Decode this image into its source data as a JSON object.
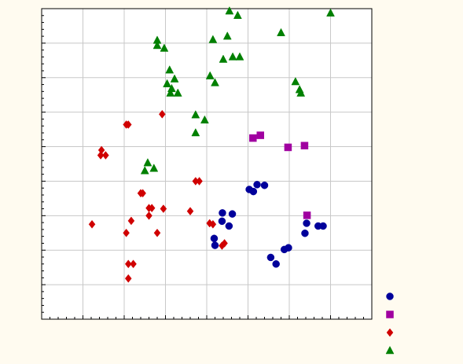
{
  "chart_data": {
    "type": "scatter",
    "title": "",
    "xlabel": "",
    "ylabel": "",
    "xlim": [
      0,
      8
    ],
    "ylim": [
      0,
      9
    ],
    "x_ticks": [
      0,
      1,
      2,
      3,
      4,
      5,
      6,
      7,
      8
    ],
    "y_ticks": [
      0,
      1,
      2,
      3,
      4,
      5,
      6,
      7,
      8,
      9
    ],
    "x_minor_per_major": 5,
    "y_minor_per_major": 5,
    "grid": true,
    "tick_labels_shown": false,
    "legend": {
      "placement": "bottom-right",
      "entries": [
        {
          "series": 0,
          "marker": "circle",
          "color": "#00009b"
        },
        {
          "series": 1,
          "marker": "square",
          "color": "#a000a0"
        },
        {
          "series": 2,
          "marker": "diamond",
          "color": "#d00000"
        },
        {
          "series": 3,
          "marker": "triangle",
          "color": "#008000"
        }
      ]
    },
    "series": [
      {
        "marker": "circle",
        "color": "#00009b",
        "points": [
          [
            5.03,
            3.76
          ],
          [
            5.13,
            3.7
          ],
          [
            5.22,
            3.9
          ],
          [
            5.4,
            3.88
          ],
          [
            4.38,
            3.08
          ],
          [
            4.62,
            3.05
          ],
          [
            4.37,
            2.84
          ],
          [
            4.54,
            2.7
          ],
          [
            4.18,
            2.34
          ],
          [
            4.2,
            2.14
          ],
          [
            5.55,
            1.79
          ],
          [
            5.68,
            1.6
          ],
          [
            5.88,
            2.02
          ],
          [
            5.98,
            2.07
          ],
          [
            6.42,
            2.78
          ],
          [
            6.38,
            2.49
          ],
          [
            6.7,
            2.7
          ],
          [
            6.82,
            2.7
          ]
        ]
      },
      {
        "marker": "square",
        "color": "#a000a0",
        "points": [
          [
            5.12,
            5.25
          ],
          [
            5.3,
            5.33
          ],
          [
            5.97,
            4.98
          ],
          [
            6.37,
            5.03
          ],
          [
            6.43,
            3.01
          ]
        ]
      },
      {
        "marker": "diamond",
        "color": "#d00000",
        "points": [
          [
            2.05,
            5.64
          ],
          [
            2.1,
            5.64
          ],
          [
            2.92,
            5.94
          ],
          [
            1.45,
            4.9
          ],
          [
            1.43,
            4.75
          ],
          [
            1.55,
            4.75
          ],
          [
            3.73,
            4.0
          ],
          [
            3.82,
            4.0
          ],
          [
            2.4,
            3.65
          ],
          [
            2.45,
            3.65
          ],
          [
            2.6,
            3.22
          ],
          [
            2.67,
            3.22
          ],
          [
            2.95,
            3.2
          ],
          [
            3.6,
            3.13
          ],
          [
            2.6,
            3.0
          ],
          [
            1.22,
            2.75
          ],
          [
            2.17,
            2.85
          ],
          [
            4.07,
            2.78
          ],
          [
            4.15,
            2.75
          ],
          [
            2.05,
            2.5
          ],
          [
            2.8,
            2.5
          ],
          [
            4.37,
            2.13
          ],
          [
            4.43,
            2.2
          ],
          [
            2.1,
            1.6
          ],
          [
            2.22,
            1.6
          ],
          [
            2.1,
            1.18
          ]
        ]
      },
      {
        "marker": "triangle",
        "color": "#008000",
        "points": [
          [
            4.55,
            8.93
          ],
          [
            4.75,
            8.8
          ],
          [
            7.0,
            8.87
          ],
          [
            5.8,
            8.3
          ],
          [
            4.5,
            8.2
          ],
          [
            4.15,
            8.1
          ],
          [
            2.8,
            8.08
          ],
          [
            2.8,
            7.93
          ],
          [
            2.97,
            7.85
          ],
          [
            4.63,
            7.6
          ],
          [
            4.8,
            7.6
          ],
          [
            4.4,
            7.53
          ],
          [
            3.1,
            7.22
          ],
          [
            3.22,
            6.96
          ],
          [
            3.04,
            6.82
          ],
          [
            4.08,
            7.05
          ],
          [
            4.2,
            6.85
          ],
          [
            6.15,
            6.88
          ],
          [
            3.15,
            6.68
          ],
          [
            3.3,
            6.55
          ],
          [
            3.12,
            6.55
          ],
          [
            6.25,
            6.65
          ],
          [
            6.28,
            6.55
          ],
          [
            3.73,
            5.92
          ],
          [
            3.95,
            5.77
          ],
          [
            3.73,
            5.4
          ],
          [
            2.57,
            4.53
          ],
          [
            2.72,
            4.37
          ],
          [
            2.5,
            4.3
          ]
        ]
      }
    ]
  }
}
